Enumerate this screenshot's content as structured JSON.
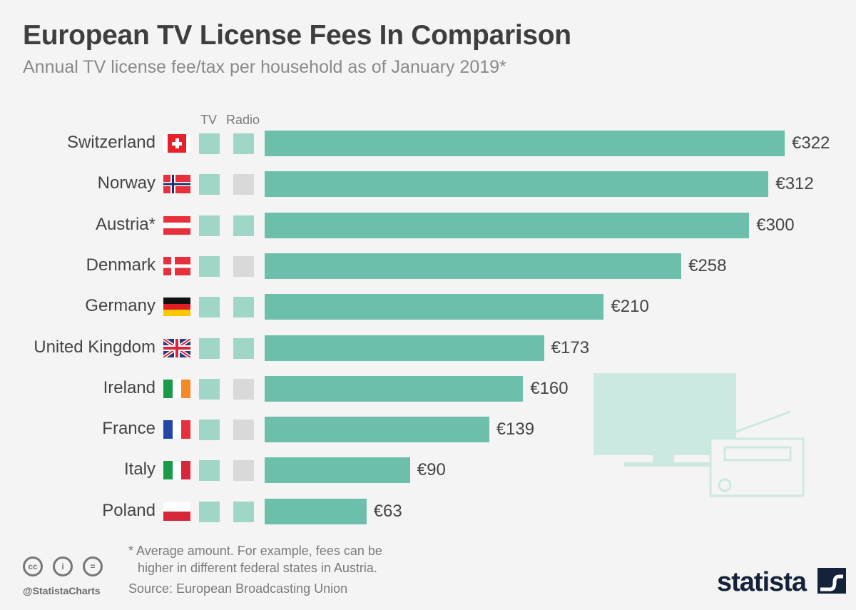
{
  "title": "European TV License Fees In Comparison",
  "subtitle": "Annual TV license fee/tax per household as of January 2019*",
  "colors": {
    "bar": "#6cbfab",
    "tv_yes": "#9fd6c8",
    "radio_yes": "#9fd6c8",
    "radio_no": "#d9d9d9",
    "illustration": "#cbe9e1"
  },
  "chart_data": {
    "type": "bar",
    "orientation": "horizontal",
    "title": "European TV License Fees In Comparison",
    "subtitle": "Annual TV license fee/tax per household as of January 2019*",
    "column_headers": {
      "tv": "TV",
      "radio": "Radio"
    },
    "categories": [
      "Switzerland",
      "Norway",
      "Austria*",
      "Denmark",
      "Germany",
      "United Kingdom",
      "Ireland",
      "France",
      "Italy",
      "Poland"
    ],
    "values": [
      322,
      312,
      300,
      258,
      210,
      173,
      160,
      139,
      90,
      63
    ],
    "value_labels": [
      "€322",
      "€312",
      "€300",
      "€258",
      "€210",
      "€173",
      "€160",
      "€139",
      "€90",
      "€63"
    ],
    "unit": "€",
    "covers_tv": [
      true,
      true,
      true,
      true,
      true,
      true,
      true,
      true,
      true,
      true
    ],
    "covers_radio": [
      true,
      false,
      true,
      false,
      true,
      true,
      false,
      false,
      false,
      true
    ],
    "flags": [
      "switzerland",
      "norway",
      "austria",
      "denmark",
      "germany",
      "united-kingdom",
      "ireland",
      "france",
      "italy",
      "poland"
    ],
    "xlim": [
      0,
      322
    ],
    "grid": false
  },
  "footer": {
    "note_line1": "* Average amount. For example, fees can be",
    "note_line2": "higher in different federal states in Austria.",
    "source": "Source: European Broadcasting Union",
    "handle": "@StatistaCharts",
    "cc_labels": [
      "cc",
      "i",
      "="
    ],
    "logo": "statista"
  }
}
